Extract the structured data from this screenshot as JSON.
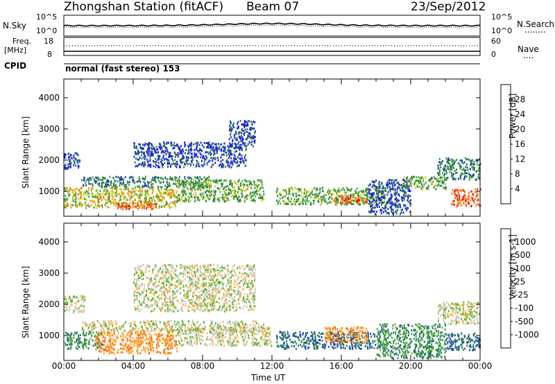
{
  "header": {
    "station": "Zhongshan Station (fitACF)",
    "beam": "Beam 07",
    "date": "23/Sep/2012"
  },
  "noise_panel": {
    "left_label": "N.Sky",
    "left_ticks": [
      "10^5",
      "10^0"
    ],
    "right_ticks": [
      "10^5",
      "10^0"
    ],
    "right_label": "N.Search",
    "right_legend": "........"
  },
  "freq_panel": {
    "left_label_line1": "Freq.",
    "left_label_line2": "[MHz]",
    "left_ticks": [
      "18",
      "8"
    ],
    "right_ticks": [
      "60",
      "0"
    ],
    "right_label": "Nave",
    "right_legend": "...."
  },
  "cpid": {
    "label": "CPID",
    "value": "normal (fast stereo) 153"
  },
  "x_axis": {
    "label": "Time UT",
    "ticks": [
      "00:00",
      "04:00",
      "08:00",
      "12:00",
      "16:00",
      "20:00",
      "00:00"
    ]
  },
  "chart_data": [
    {
      "type": "heatmap",
      "name": "power-panel",
      "ylabel": "Slant Range [km]",
      "ylim": [
        200,
        4600
      ],
      "y_ticks": [
        1000,
        2000,
        3000,
        4000
      ],
      "xlim_hours": [
        0,
        24
      ],
      "colorbar": {
        "label": "Power [dB]",
        "ticks": [
          4,
          8,
          12,
          16,
          20,
          24,
          28
        ],
        "colors": [
          "#1a1aff",
          "#1f3aa8",
          "#2d7d4f",
          "#3fa53a",
          "#c8c814",
          "#f08c14",
          "#ff6414",
          "#e60a0a"
        ]
      },
      "regions": [
        {
          "t": [
            0.0,
            0.9
          ],
          "r": [
            1750,
            2300
          ],
          "level": 1
        },
        {
          "t": [
            1.0,
            8.5
          ],
          "r": [
            1150,
            1500
          ],
          "level": 2
        },
        {
          "t": [
            0.0,
            6.5
          ],
          "r": [
            500,
            1150
          ],
          "level": 4
        },
        {
          "t": [
            3.0,
            5.5
          ],
          "r": [
            450,
            700
          ],
          "level": 6
        },
        {
          "t": [
            6.5,
            11.5
          ],
          "r": [
            700,
            1400
          ],
          "level": 3
        },
        {
          "t": [
            4.0,
            10.5
          ],
          "r": [
            1800,
            2600
          ],
          "level": 1
        },
        {
          "t": [
            9.5,
            11.0
          ],
          "r": [
            2400,
            3300
          ],
          "level": 1
        },
        {
          "t": [
            12.2,
            18.5
          ],
          "r": [
            600,
            1150
          ],
          "level": 3
        },
        {
          "t": [
            15.5,
            17.5
          ],
          "r": [
            650,
            900
          ],
          "level": 6
        },
        {
          "t": [
            17.5,
            20.0
          ],
          "r": [
            300,
            1400
          ],
          "level": 1
        },
        {
          "t": [
            19.5,
            22.0
          ],
          "r": [
            1100,
            1500
          ],
          "level": 3
        },
        {
          "t": [
            21.5,
            24.0
          ],
          "r": [
            1400,
            2100
          ],
          "level": 2
        },
        {
          "t": [
            22.3,
            24.0
          ],
          "r": [
            550,
            1100
          ],
          "level": 6
        }
      ]
    },
    {
      "type": "heatmap",
      "name": "velocity-panel",
      "ylabel": "Slant Range [km]",
      "ylim": [
        200,
        4600
      ],
      "y_ticks": [
        1000,
        2000,
        3000,
        4000
      ],
      "xlim_hours": [
        0,
        24
      ],
      "colorbar": {
        "label": "Velocity [m s-1]",
        "ticks": [
          1000,
          500,
          100,
          25,
          -25,
          -100,
          -500,
          -1000
        ],
        "colors": [
          "#2040c0",
          "#2a6a6a",
          "#2e8b57",
          "#5ab432",
          "#c8c8c0",
          "#ffb450",
          "#ff8c00",
          "#ff6400",
          "#e60a0a"
        ]
      },
      "regions": [
        {
          "t": [
            0.0,
            1.2
          ],
          "r": [
            1750,
            2300
          ],
          "level": 4
        },
        {
          "t": [
            1.0,
            11.5
          ],
          "r": [
            1150,
            1500
          ],
          "level": 4
        },
        {
          "t": [
            0.0,
            2.2
          ],
          "r": [
            600,
            1150
          ],
          "level": 2
        },
        {
          "t": [
            1.8,
            6.5
          ],
          "r": [
            450,
            1150
          ],
          "level": 6
        },
        {
          "t": [
            6.5,
            12.0
          ],
          "r": [
            700,
            1300
          ],
          "level": 4
        },
        {
          "t": [
            4.0,
            11.0
          ],
          "r": [
            1800,
            3300
          ],
          "level": 4
        },
        {
          "t": [
            12.2,
            18.5
          ],
          "r": [
            600,
            1150
          ],
          "level": 1
        },
        {
          "t": [
            15.0,
            17.5
          ],
          "r": [
            800,
            1300
          ],
          "level": 6
        },
        {
          "t": [
            18.0,
            22.0
          ],
          "r": [
            300,
            1400
          ],
          "level": 2
        },
        {
          "t": [
            21.5,
            24.0
          ],
          "r": [
            1400,
            2100
          ],
          "level": 4
        },
        {
          "t": [
            22.0,
            24.0
          ],
          "r": [
            550,
            1100
          ],
          "level": 1
        }
      ]
    }
  ]
}
